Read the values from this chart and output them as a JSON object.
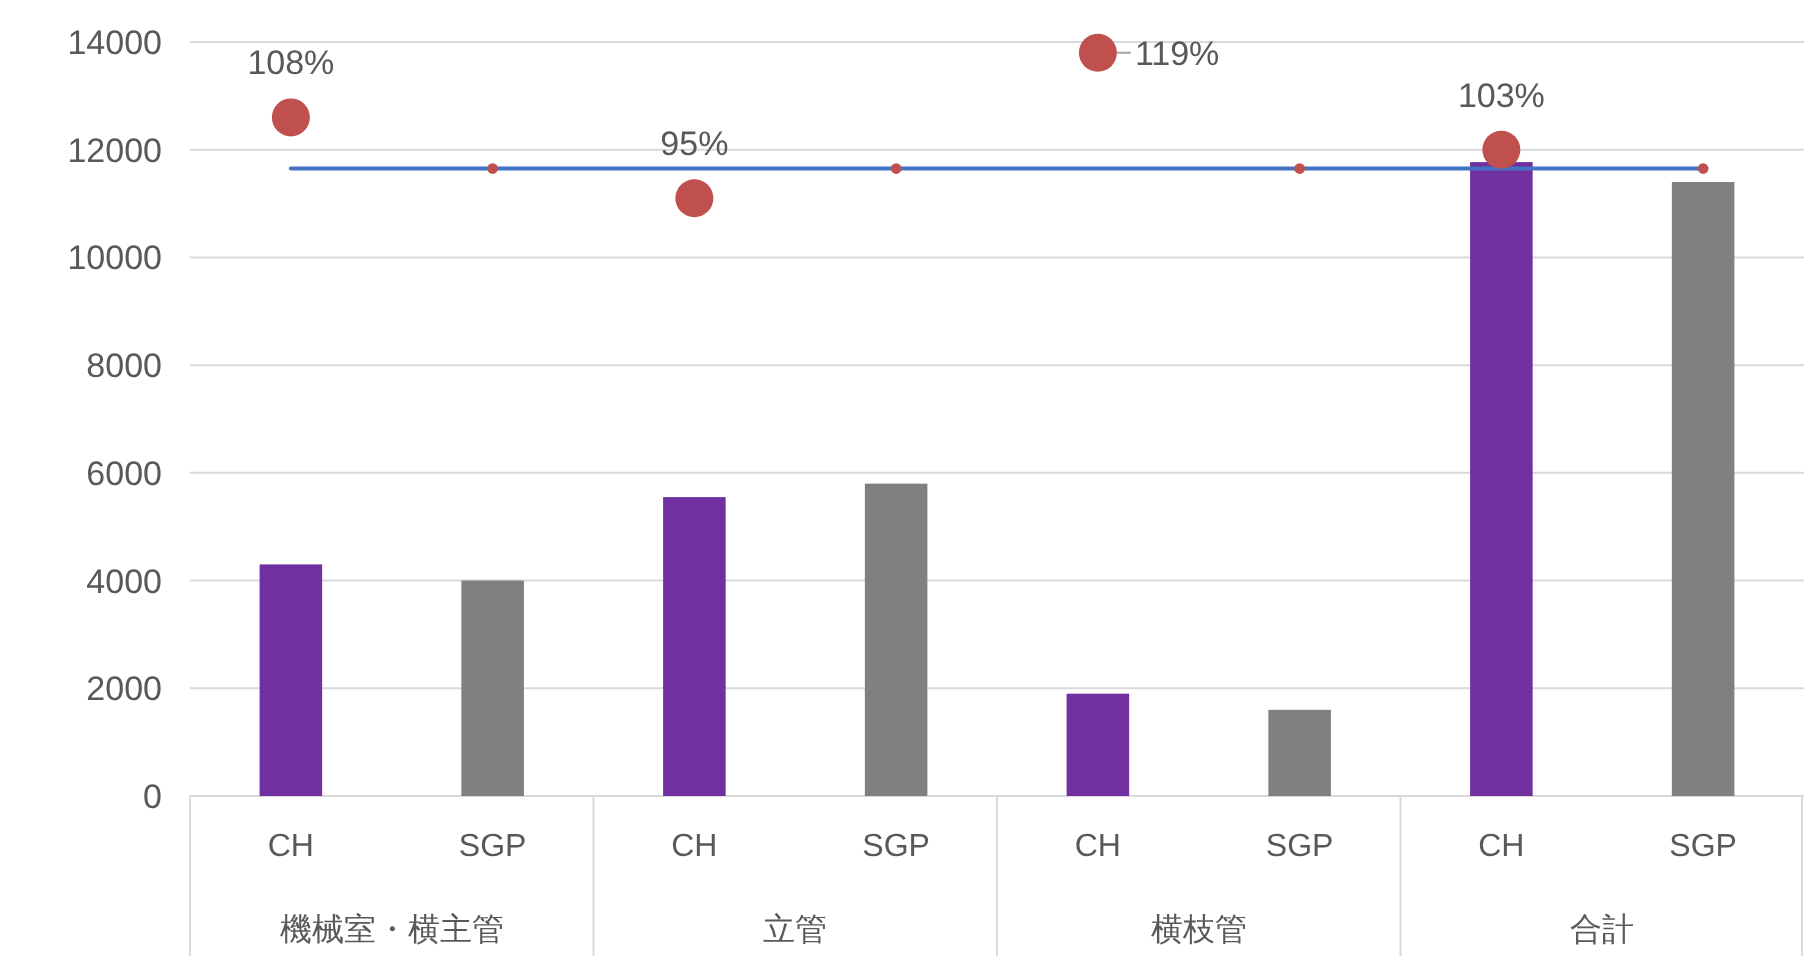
{
  "chart_data": {
    "type": "bar",
    "categories": [
      "CH",
      "SGP",
      "CH",
      "SGP",
      "CH",
      "SGP",
      "CH",
      "SGP"
    ],
    "annotations": [
      "機械室・横主管",
      "立管",
      "横枝管",
      "合計",
      {
        "text": "108%",
        "y": 12600
      },
      {
        "text": "95%",
        "y": 11100
      },
      "119%",
      {
        "text": "103%",
        "y": 12000
      }
    ],
    "ylim": [
      0,
      14000
    ],
    "yticks": [
      0,
      2000,
      4000,
      6000,
      8000,
      10000,
      12000,
      14000
    ],
    "grid": "y",
    "series": [
      {
        "colors": [
          "#7030a0",
          "#808080",
          "#7030a0",
          "#808080",
          "#7030a0",
          "#808080",
          "#7030a0",
          "#808080"
        ],
        "values": [
          4300,
          4000,
          5550,
          5800,
          1900,
          1600,
          11770,
          11400
        ]
      },
      {
        "type": "line",
        "color": "#4472c4",
        "values": [
          11650,
          11650,
          11650,
          11650,
          11650,
          11650,
          11650,
          11650
        ]
      },
      {
        "type": "bubble",
        "color": "#c0504d",
        "values": [
          null,
          11650,
          null,
          11650,
          null,
          11650,
          null,
          11650
        ],
        "sizes": [
          null,
          0.08,
          null,
          0.08,
          null,
          0.08,
          null,
          0.08
        ]
      },
      {
        "type": "bubble",
        "color": "#c0504d",
        "values": [
          12600,
          null,
          11100,
          null,
          13800,
          null,
          12000,
          null
        ],
        "sizes": [
          1,
          null,
          1,
          null,
          1,
          null,
          1,
          null
        ]
      }
    ]
  }
}
